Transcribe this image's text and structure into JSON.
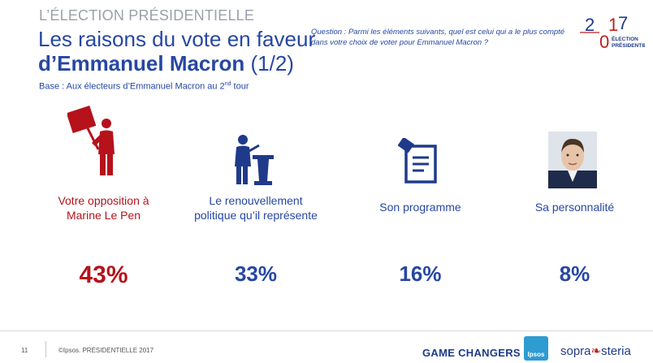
{
  "header": {
    "kicker": "L’ÉLECTION PRÉSIDENTIELLE",
    "title_line1": "Les raisons du vote en faveur",
    "title_line2_bold": "d’Emmanuel Macron",
    "title_line2_rest": " (1/2)",
    "base_prefix": "Base :  Aux électeurs d’Emmanuel Macron au 2",
    "base_sup": "nd",
    "base_suffix": " tour"
  },
  "question": "Question : Parmi les éléments suivants, quel est celui qui a le plus compté dans votre choix de voter pour Emmanuel Macron ?",
  "logo": {
    "year_top": "2 7",
    "year_bottom": "0",
    "line1": "ÉLECTION",
    "line2": "PRÉSIDENTIELLE",
    "red": "#c0201c",
    "blue": "#1f3a8a"
  },
  "items": [
    {
      "icon": "protester-sign-icon",
      "label_line1": "Votre opposition à",
      "label_line2": "Marine Le Pen",
      "value": "43%",
      "color": "#b5121b"
    },
    {
      "icon": "speaker-podium-icon",
      "label_line1": "Le renouvellement",
      "label_line2": "politique qu’il représente",
      "value": "33%",
      "color": "#2747a3"
    },
    {
      "icon": "ballot-box-icon",
      "label_line1": "Son programme",
      "label_line2": "",
      "value": "16%",
      "color": "#2747a3"
    },
    {
      "icon": "portrait-icon",
      "label_line1": "Sa personnalité",
      "label_line2": "",
      "value": "8%",
      "color": "#2747a3"
    }
  ],
  "footer": {
    "page": "11",
    "copyright": "©Ipsos.  PRÉSIDENTIELLE 2017",
    "game_changers": "GAME CHANGERS",
    "ipsos": "Ipsos",
    "sopra_a": "sopra",
    "sopra_b": "steria"
  }
}
